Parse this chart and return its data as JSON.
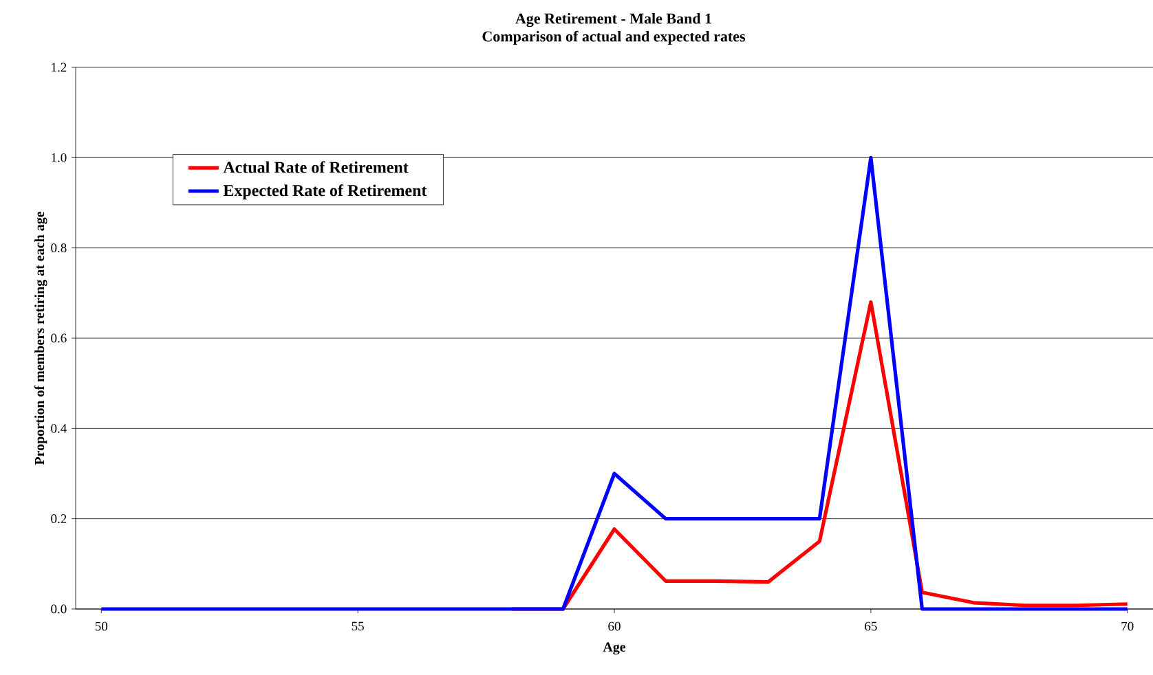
{
  "chart_data": {
    "type": "line",
    "title": "Age Retirement - Male Band 1",
    "subtitle": "Comparison of actual and expected rates",
    "xlabel": "Age",
    "ylabel": "Proportion of members retiring at each age",
    "x": [
      50,
      51,
      52,
      53,
      54,
      55,
      56,
      57,
      58,
      59,
      60,
      61,
      62,
      63,
      64,
      65,
      66,
      67,
      68,
      69,
      70
    ],
    "series": [
      {
        "name": "Actual Rate of Retirement",
        "color": "#ff0000",
        "values": [
          null,
          null,
          null,
          null,
          null,
          null,
          null,
          null,
          0,
          0,
          0.177,
          0.062,
          0.062,
          0.06,
          0.15,
          0.68,
          0.037,
          0.014,
          0.008,
          0.008,
          0.011
        ]
      },
      {
        "name": "Expected Rate of Retirement",
        "color": "#0000ff",
        "values": [
          0,
          0,
          0,
          0,
          0,
          0,
          0,
          0,
          0,
          0,
          0.3,
          0.2,
          0.2,
          0.2,
          0.2,
          1.0,
          0,
          0,
          0,
          0,
          0
        ]
      }
    ],
    "xlim": [
      49.5,
      70.5
    ],
    "ylim": [
      0,
      1.2
    ],
    "xticks": [
      50,
      55,
      60,
      65,
      70
    ],
    "yticks": [
      {
        "value": 0,
        "label": "0.0"
      },
      {
        "value": 0.2,
        "label": "0.2"
      },
      {
        "value": 0.4,
        "label": "0.4"
      },
      {
        "value": 0.6,
        "label": "0.6"
      },
      {
        "value": 0.8,
        "label": "0.8"
      },
      {
        "value": 1.0,
        "label": "1.0"
      },
      {
        "value": 1.2,
        "label": "1.2"
      }
    ],
    "grid": "y",
    "legend": "top left",
    "marker": "none",
    "line_style": "solid"
  }
}
